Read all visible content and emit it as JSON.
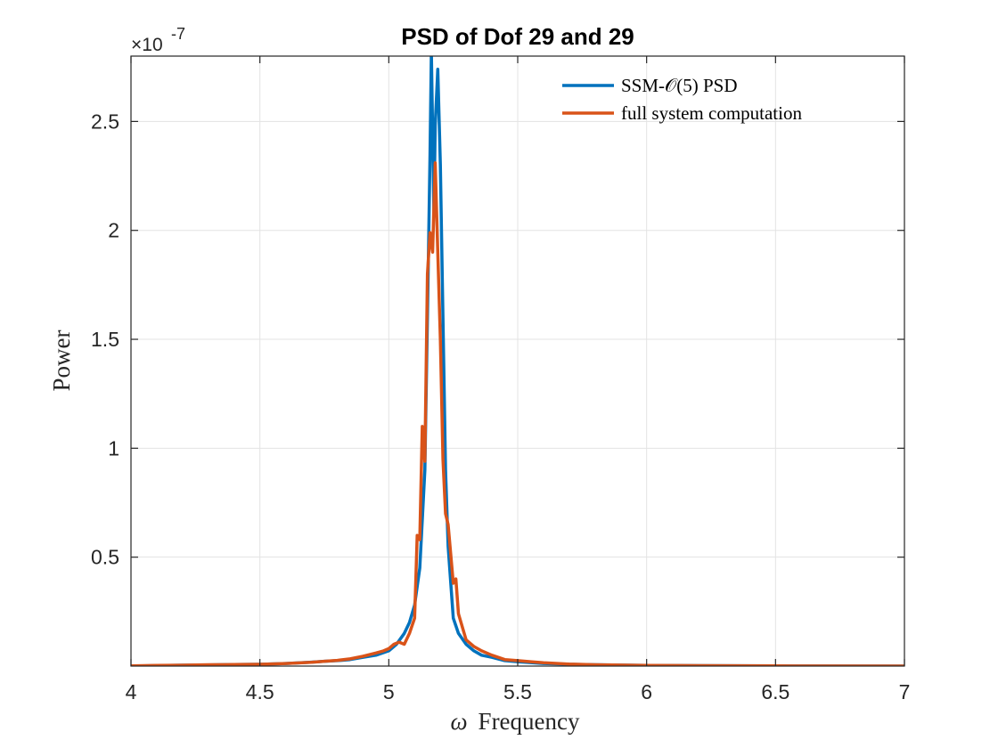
{
  "chart_data": {
    "type": "line",
    "title": "PSD of Dof 29 and 29",
    "xlabel_symbol": "ω",
    "xlabel_text": "Frequency",
    "ylabel": "Power",
    "exponent_label": "×10",
    "exponent_power": "-7",
    "xlim": [
      4,
      7
    ],
    "ylim": [
      0,
      2.8
    ],
    "x_ticks": [
      4,
      4.5,
      5,
      5.5,
      6,
      6.5,
      7
    ],
    "x_tick_labels": [
      "4",
      "4.5",
      "5",
      "5.5",
      "6",
      "6.5",
      "7"
    ],
    "y_ticks": [
      0.5,
      1,
      1.5,
      2,
      2.5
    ],
    "y_tick_labels": [
      "0.5",
      "1",
      "1.5",
      "2",
      "2.5"
    ],
    "grid": true,
    "legend_position": "top-right",
    "series": [
      {
        "name": "SSM-𝒪(5) PSD",
        "color": "#0072BD",
        "x": [
          4.0,
          4.1,
          4.2,
          4.3,
          4.4,
          4.5,
          4.6,
          4.7,
          4.75,
          4.8,
          4.85,
          4.9,
          4.95,
          5.0,
          5.03,
          5.06,
          5.08,
          5.1,
          5.12,
          5.14,
          5.15,
          5.16,
          5.165,
          5.175,
          5.18,
          5.19,
          5.2,
          5.21,
          5.22,
          5.23,
          5.25,
          5.27,
          5.3,
          5.33,
          5.36,
          5.4,
          5.45,
          5.5,
          5.6,
          5.7,
          5.8,
          6.0,
          6.2,
          6.5,
          7.0
        ],
        "values": [
          0.0,
          0.002,
          0.004,
          0.005,
          0.007,
          0.008,
          0.012,
          0.018,
          0.022,
          0.025,
          0.03,
          0.04,
          0.05,
          0.07,
          0.1,
          0.15,
          0.2,
          0.28,
          0.45,
          0.9,
          1.6,
          2.35,
          2.82,
          2.07,
          2.48,
          2.74,
          2.3,
          1.6,
          0.9,
          0.55,
          0.22,
          0.15,
          0.1,
          0.07,
          0.05,
          0.04,
          0.025,
          0.02,
          0.012,
          0.008,
          0.006,
          0.003,
          0.002,
          0.001,
          0.0
        ]
      },
      {
        "name": "full system computation",
        "color": "#D95319",
        "x": [
          4.0,
          4.1,
          4.2,
          4.3,
          4.4,
          4.5,
          4.6,
          4.7,
          4.75,
          4.8,
          4.85,
          4.9,
          4.95,
          4.98,
          5.0,
          5.02,
          5.04,
          5.06,
          5.08,
          5.1,
          5.11,
          5.12,
          5.13,
          5.14,
          5.15,
          5.16,
          5.17,
          5.18,
          5.19,
          5.2,
          5.21,
          5.22,
          5.23,
          5.25,
          5.26,
          5.27,
          5.3,
          5.33,
          5.36,
          5.4,
          5.45,
          5.5,
          5.55,
          5.6,
          5.7,
          5.8,
          6.0,
          6.2,
          6.5,
          7.0
        ],
        "values": [
          0.001,
          0.003,
          0.004,
          0.006,
          0.007,
          0.008,
          0.012,
          0.017,
          0.022,
          0.026,
          0.033,
          0.045,
          0.06,
          0.07,
          0.08,
          0.1,
          0.11,
          0.1,
          0.15,
          0.22,
          0.6,
          0.58,
          1.1,
          0.94,
          1.8,
          1.99,
          1.9,
          2.31,
          1.9,
          1.5,
          0.95,
          0.7,
          0.65,
          0.38,
          0.4,
          0.24,
          0.12,
          0.09,
          0.07,
          0.05,
          0.03,
          0.025,
          0.02,
          0.015,
          0.009,
          0.006,
          0.003,
          0.002,
          0.001,
          0.0
        ]
      }
    ]
  }
}
